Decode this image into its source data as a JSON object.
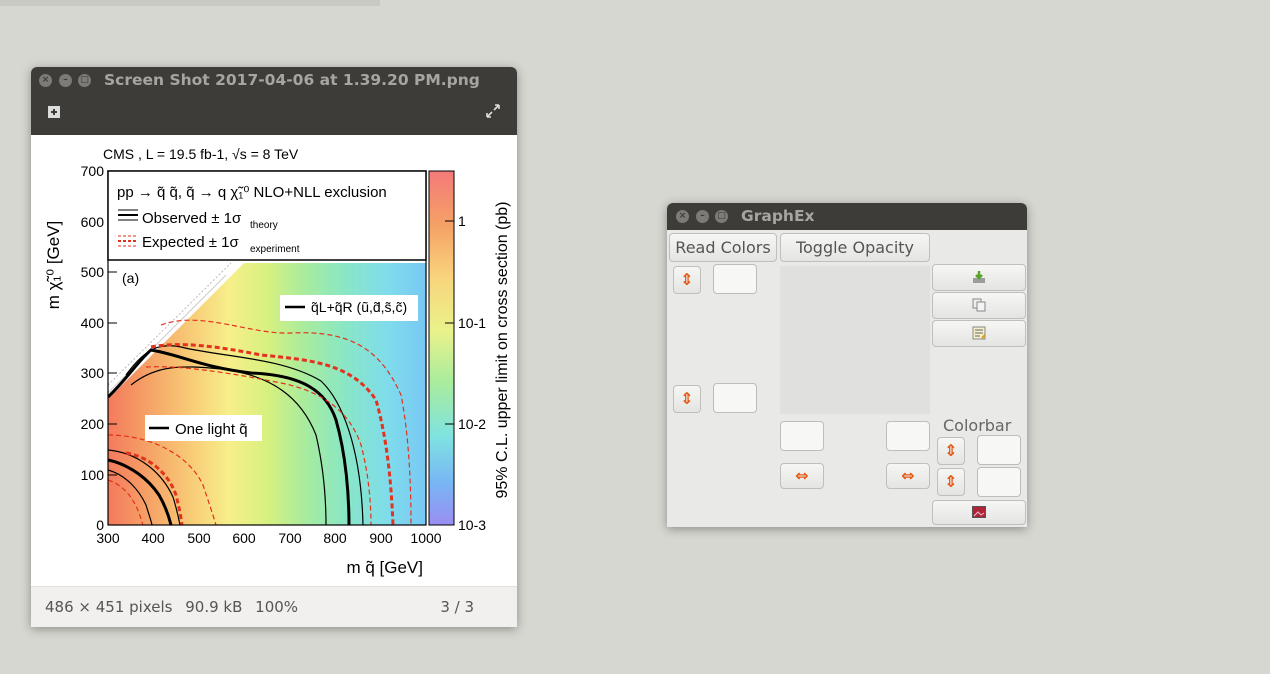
{
  "viewer": {
    "title": "Screen Shot 2017-04-06 at 1.39.20 PM.png",
    "status_dimensions": "486 × 451 pixels",
    "status_size": "90.9 kB",
    "status_zoom": "100%",
    "status_page": "3 / 3"
  },
  "figure": {
    "header": "CMS , L = 19.5 fb-1, √s = 8 TeV",
    "legend_process": "pp → q̃ q̃, q̃ → q χ̃₁⁰  NLO+NLL exclusion",
    "legend_observed": "Observed ± 1σ",
    "legend_observed_sub": "theory",
    "legend_expected": "Expected ± 1σ",
    "legend_expected_sub": "experiment",
    "panel_label": "(a)",
    "label_multi": "q̃L+q̃R (ũ,d̃,s̃,c̃)",
    "label_single": "One light q̃",
    "xlabel": "m q̃ [GeV]",
    "ylabel": "m χ̃₁⁰ [GeV]",
    "zlabel": "95% C.L. upper limit on cross section (pb)",
    "xticks": [
      "300",
      "400",
      "500",
      "600",
      "700",
      "800",
      "900",
      "1000"
    ],
    "yticks": [
      "0",
      "100",
      "200",
      "300",
      "400",
      "500",
      "600",
      "700"
    ],
    "zticks": [
      "1",
      "10-1",
      "10-2",
      "10-3"
    ]
  },
  "graphex": {
    "title": "GraphEx",
    "read_colors": "Read Colors",
    "toggle_opacity": "Toggle Opacity",
    "colorbar": "Colorbar"
  },
  "colors": {
    "titlebar": "#3d3c38",
    "accent_orange": "#e45a16"
  }
}
